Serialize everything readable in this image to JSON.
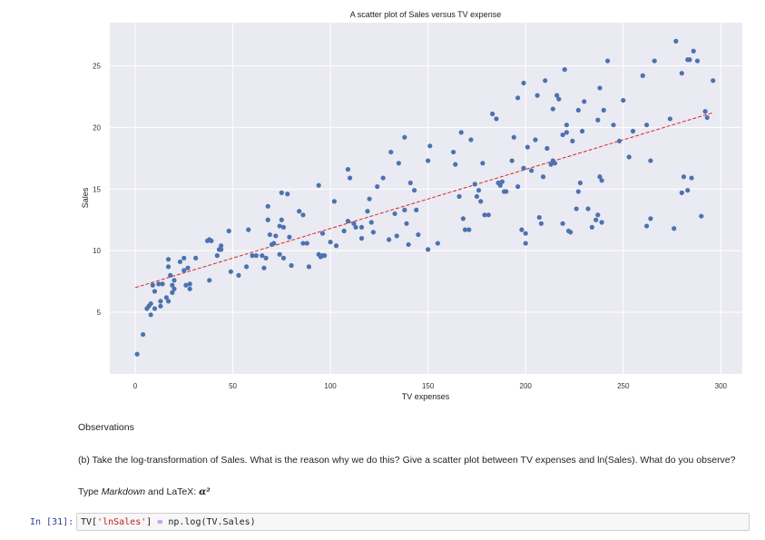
{
  "notebook": {
    "observations_heading": "Observations",
    "question_text": "(b) Take the log-transformation of Sales. What is the reason why we do this? Give a scatter plot between TV expenses and ln(Sales). What do you observe?",
    "markdown_note": {
      "prefix": "Type ",
      "emph": "Markdown",
      "middle": " and LaTeX: ",
      "math": "α²"
    },
    "code_cell": {
      "prompt": "In [31]:",
      "code_parts": [
        {
          "text": "TV[",
          "kind": "plain"
        },
        {
          "text": "'lnSales'",
          "kind": "str"
        },
        {
          "text": "] ",
          "kind": "plain"
        },
        {
          "text": "=",
          "kind": "op"
        },
        {
          "text": " np.log(TV.Sales)",
          "kind": "plain"
        }
      ]
    }
  },
  "colors": {
    "plot_background": "#eaeaf2",
    "grid": "#ffffff",
    "point": "#4c72b0",
    "trend_line": "#d62728"
  },
  "chart_data": {
    "type": "scatter",
    "title": "A scatter plot of Sales versus TV expense",
    "xlabel": "TV expenses",
    "ylabel": "Sales",
    "xlim": [
      -13,
      311
    ],
    "ylim": [
      0,
      28.5
    ],
    "xticks": [
      0,
      50,
      100,
      150,
      200,
      250,
      300
    ],
    "yticks": [
      5,
      10,
      15,
      20,
      25
    ],
    "grid": true,
    "trend_line": {
      "x": [
        0,
        296
      ],
      "y": [
        7.0,
        21.2
      ]
    },
    "series": [
      {
        "name": "Sales",
        "points": [
          [
            1,
            1.6
          ],
          [
            4,
            3.2
          ],
          [
            6,
            5.3
          ],
          [
            7,
            5.5
          ],
          [
            8,
            5.7
          ],
          [
            8,
            4.8
          ],
          [
            9,
            7.2
          ],
          [
            10,
            5.3
          ],
          [
            13,
            5.5
          ],
          [
            13,
            5.9
          ],
          [
            10,
            6.7
          ],
          [
            12,
            7.3
          ],
          [
            14,
            7.3
          ],
          [
            16,
            6.2
          ],
          [
            17,
            8.7
          ],
          [
            17,
            9.3
          ],
          [
            18,
            8.0
          ],
          [
            19,
            7.2
          ],
          [
            19,
            6.6
          ],
          [
            20,
            7.6
          ],
          [
            17,
            5.9
          ],
          [
            20,
            6.9
          ],
          [
            23,
            9.1
          ],
          [
            25,
            9.4
          ],
          [
            25,
            8.4
          ],
          [
            26,
            7.2
          ],
          [
            27,
            8.6
          ],
          [
            28,
            6.9
          ],
          [
            28,
            7.3
          ],
          [
            31,
            9.4
          ],
          [
            37,
            10.8
          ],
          [
            38,
            10.9
          ],
          [
            39,
            10.8
          ],
          [
            38,
            7.6
          ],
          [
            42,
            9.6
          ],
          [
            43,
            10.1
          ],
          [
            44,
            10.4
          ],
          [
            44,
            10.1
          ],
          [
            48,
            11.6
          ],
          [
            49,
            8.3
          ],
          [
            53,
            8.0
          ],
          [
            57,
            8.7
          ],
          [
            58,
            11.7
          ],
          [
            60,
            9.6
          ],
          [
            62,
            9.6
          ],
          [
            65,
            9.6
          ],
          [
            66,
            8.6
          ],
          [
            67,
            9.4
          ],
          [
            68,
            12.5
          ],
          [
            68,
            13.6
          ],
          [
            69,
            11.3
          ],
          [
            70,
            10.5
          ],
          [
            71,
            10.6
          ],
          [
            72,
            11.2
          ],
          [
            74,
            12.0
          ],
          [
            74,
            9.7
          ],
          [
            75,
            14.7
          ],
          [
            75,
            12.5
          ],
          [
            76,
            11.9
          ],
          [
            76,
            9.4
          ],
          [
            78,
            14.6
          ],
          [
            79,
            11.1
          ],
          [
            80,
            8.8
          ],
          [
            84,
            13.2
          ],
          [
            86,
            12.9
          ],
          [
            86,
            10.6
          ],
          [
            88,
            10.6
          ],
          [
            89,
            8.7
          ],
          [
            94,
            15.3
          ],
          [
            94,
            9.7
          ],
          [
            95,
            9.5
          ],
          [
            96,
            9.6
          ],
          [
            97,
            9.6
          ],
          [
            96,
            11.4
          ],
          [
            100,
            10.7
          ],
          [
            102,
            14.0
          ],
          [
            103,
            10.4
          ],
          [
            107,
            11.6
          ],
          [
            109,
            16.6
          ],
          [
            110,
            15.9
          ],
          [
            109,
            12.4
          ],
          [
            112,
            12.2
          ],
          [
            113,
            11.9
          ],
          [
            116,
            11.9
          ],
          [
            116,
            11.0
          ],
          [
            119,
            13.2
          ],
          [
            120,
            14.2
          ],
          [
            121,
            12.3
          ],
          [
            122,
            11.5
          ],
          [
            124,
            15.2
          ],
          [
            127,
            15.9
          ],
          [
            130,
            10.9
          ],
          [
            131,
            18.0
          ],
          [
            133,
            13.0
          ],
          [
            134,
            11.2
          ],
          [
            135,
            17.1
          ],
          [
            138,
            19.2
          ],
          [
            138,
            13.3
          ],
          [
            139,
            12.2
          ],
          [
            140,
            10.5
          ],
          [
            141,
            15.5
          ],
          [
            143,
            14.9
          ],
          [
            144,
            13.3
          ],
          [
            145,
            11.3
          ],
          [
            150,
            17.3
          ],
          [
            150,
            10.1
          ],
          [
            151,
            18.5
          ],
          [
            155,
            10.6
          ],
          [
            163,
            18.0
          ],
          [
            164,
            17.0
          ],
          [
            166,
            14.4
          ],
          [
            167,
            19.6
          ],
          [
            168,
            12.6
          ],
          [
            169,
            11.7
          ],
          [
            171,
            11.7
          ],
          [
            172,
            19.0
          ],
          [
            174,
            15.4
          ],
          [
            175,
            14.4
          ],
          [
            176,
            14.9
          ],
          [
            177,
            14.0
          ],
          [
            178,
            17.1
          ],
          [
            179,
            12.9
          ],
          [
            181,
            12.9
          ],
          [
            183,
            21.1
          ],
          [
            185,
            20.7
          ],
          [
            186,
            15.5
          ],
          [
            187,
            15.3
          ],
          [
            188,
            15.6
          ],
          [
            189,
            14.8
          ],
          [
            190,
            14.8
          ],
          [
            193,
            17.3
          ],
          [
            194,
            19.2
          ],
          [
            196,
            15.2
          ],
          [
            196,
            22.4
          ],
          [
            198,
            11.7
          ],
          [
            199,
            23.6
          ],
          [
            199,
            16.7
          ],
          [
            200,
            11.4
          ],
          [
            200,
            10.6
          ],
          [
            201,
            18.4
          ],
          [
            203,
            16.5
          ],
          [
            205,
            19.0
          ],
          [
            206,
            22.6
          ],
          [
            207,
            12.7
          ],
          [
            208,
            12.2
          ],
          [
            209,
            16.0
          ],
          [
            210,
            23.8
          ],
          [
            211,
            18.3
          ],
          [
            213,
            17.0
          ],
          [
            214,
            17.3
          ],
          [
            214,
            21.5
          ],
          [
            215,
            17.1
          ],
          [
            216,
            22.6
          ],
          [
            217,
            22.3
          ],
          [
            219,
            12.2
          ],
          [
            219,
            19.4
          ],
          [
            220,
            24.7
          ],
          [
            221,
            19.6
          ],
          [
            221,
            20.2
          ],
          [
            222,
            11.6
          ],
          [
            223,
            11.5
          ],
          [
            224,
            18.9
          ],
          [
            226,
            13.4
          ],
          [
            227,
            21.4
          ],
          [
            227,
            14.8
          ],
          [
            228,
            15.5
          ],
          [
            229,
            19.7
          ],
          [
            230,
            22.1
          ],
          [
            232,
            13.4
          ],
          [
            234,
            11.9
          ],
          [
            236,
            12.5
          ],
          [
            237,
            12.9
          ],
          [
            237,
            20.6
          ],
          [
            238,
            23.2
          ],
          [
            238,
            16.0
          ],
          [
            239,
            15.7
          ],
          [
            239,
            12.3
          ],
          [
            240,
            21.4
          ],
          [
            242,
            25.4
          ],
          [
            245,
            20.2
          ],
          [
            248,
            18.9
          ],
          [
            250,
            22.2
          ],
          [
            253,
            17.6
          ],
          [
            255,
            19.7
          ],
          [
            260,
            24.2
          ],
          [
            262,
            20.2
          ],
          [
            262,
            12.0
          ],
          [
            264,
            12.6
          ],
          [
            264,
            17.3
          ],
          [
            266,
            25.4
          ],
          [
            274,
            20.7
          ],
          [
            276,
            11.8
          ],
          [
            277,
            27.0
          ],
          [
            280,
            24.4
          ],
          [
            281,
            16.0
          ],
          [
            280,
            14.7
          ],
          [
            283,
            14.9
          ],
          [
            283,
            25.5
          ],
          [
            284,
            25.5
          ],
          [
            285,
            15.9
          ],
          [
            286,
            26.2
          ],
          [
            288,
            25.4
          ],
          [
            290,
            12.8
          ],
          [
            292,
            21.3
          ],
          [
            293,
            20.8
          ],
          [
            296,
            23.8
          ]
        ]
      }
    ]
  }
}
